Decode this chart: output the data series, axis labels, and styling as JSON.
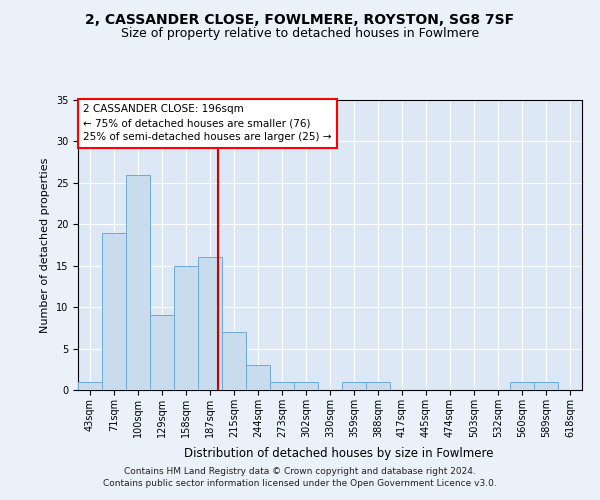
{
  "title": "2, CASSANDER CLOSE, FOWLMERE, ROYSTON, SG8 7SF",
  "subtitle": "Size of property relative to detached houses in Fowlmere",
  "xlabel": "Distribution of detached houses by size in Fowlmere",
  "ylabel": "Number of detached properties",
  "categories": [
    "43sqm",
    "71sqm",
    "100sqm",
    "129sqm",
    "158sqm",
    "187sqm",
    "215sqm",
    "244sqm",
    "273sqm",
    "302sqm",
    "330sqm",
    "359sqm",
    "388sqm",
    "417sqm",
    "445sqm",
    "474sqm",
    "503sqm",
    "532sqm",
    "560sqm",
    "589sqm",
    "618sqm"
  ],
  "values": [
    1,
    19,
    26,
    9,
    15,
    16,
    7,
    3,
    1,
    1,
    0,
    1,
    1,
    0,
    0,
    0,
    0,
    0,
    1,
    1,
    0
  ],
  "bar_color": "#c8dced",
  "bar_edge_color": "#6aaad4",
  "bar_edge_width": 0.7,
  "ylim": [
    0,
    35
  ],
  "yticks": [
    0,
    5,
    10,
    15,
    20,
    25,
    30,
    35
  ],
  "red_line_x": 5.32,
  "red_line_color": "#cc0000",
  "annotation_box_text": "2 CASSANDER CLOSE: 196sqm\n← 75% of detached houses are smaller (76)\n25% of semi-detached houses are larger (25) →",
  "annotation_fontsize": 7.5,
  "title_fontsize": 10,
  "subtitle_fontsize": 9,
  "xlabel_fontsize": 8.5,
  "ylabel_fontsize": 8,
  "tick_fontsize": 7,
  "footer_text": "Contains HM Land Registry data © Crown copyright and database right 2024.\nContains public sector information licensed under the Open Government Licence v3.0.",
  "footer_fontsize": 6.5,
  "background_color": "#eaf1f8",
  "plot_background_color": "#dce8f5",
  "grid_color": "#ffffff"
}
